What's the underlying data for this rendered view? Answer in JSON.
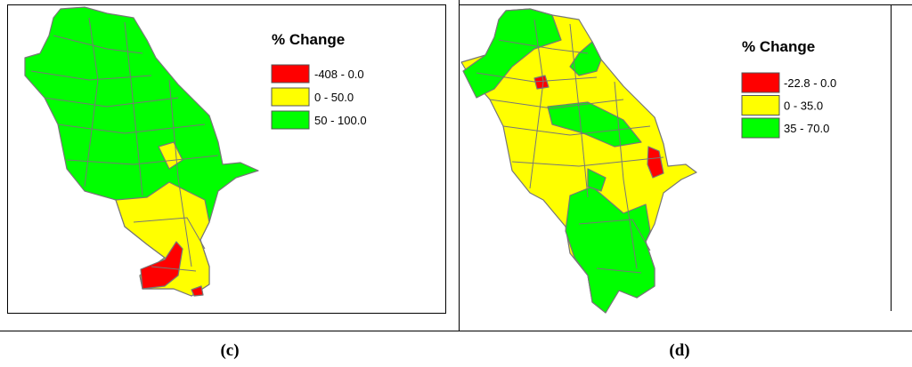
{
  "panels": [
    {
      "label": "(c)",
      "legend": {
        "title": "% Change",
        "items": [
          {
            "label": "-408 - 0.0",
            "color": "#ff0000"
          },
          {
            "label": "0 - 50.0",
            "color": "#ffff00"
          },
          {
            "label": "50 - 100.0",
            "color": "#00ff00"
          }
        ]
      }
    },
    {
      "label": "(d)",
      "legend": {
        "title": "% Change",
        "items": [
          {
            "label": "-22.8 - 0.0",
            "color": "#ff0000"
          },
          {
            "label": "0 - 35.0",
            "color": "#ffff00"
          },
          {
            "label": "35 - 70.0",
            "color": "#00ff00"
          }
        ]
      }
    }
  ]
}
